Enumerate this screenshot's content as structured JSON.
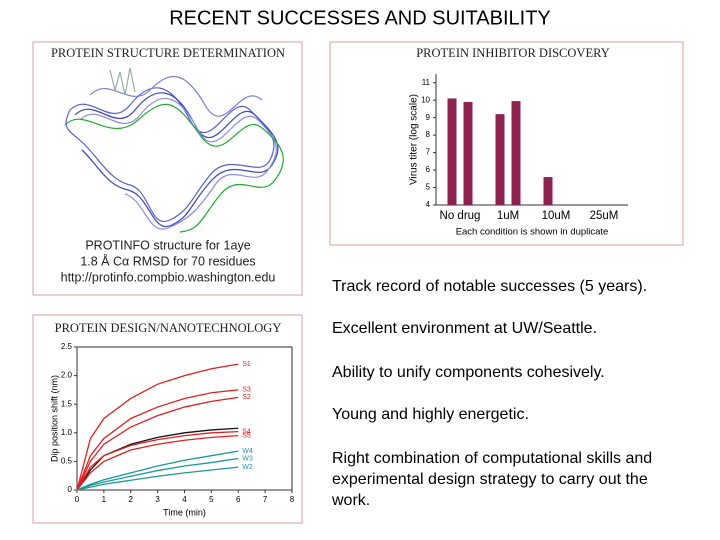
{
  "title": "RECENT SUCCESSES AND SUITABILITY",
  "panels": {
    "structure": {
      "heading": "PROTEIN STRUCTURE DETERMINATION",
      "caption": [
        "PROTINFO structure for 1aye",
        "1.8 Å Cα RMSD for 70 residues",
        "http://protinfo.compbio.washington.edu"
      ]
    },
    "inhibitor": {
      "heading": "PROTEIN INHIBITOR DISCOVERY",
      "chart_data": {
        "type": "bar",
        "ylabel": "Virus titer (log scale)",
        "caption": "Each condition is shown in duplicate",
        "categories": [
          "No drug",
          "1uM",
          "10uM",
          "25uM"
        ],
        "values": [
          [
            10.1,
            9.9
          ],
          [
            9.2,
            9.95
          ],
          [
            5.6,
            null
          ],
          [
            null,
            null
          ]
        ],
        "color": "#8e2352",
        "ylim": [
          4,
          11.5
        ],
        "yticks": [
          4,
          5,
          6,
          7,
          8,
          9,
          10,
          11
        ]
      }
    },
    "design": {
      "heading": "PROTEIN DESIGN/NANOTECHNOLOGY",
      "chart_data": {
        "type": "line",
        "xlabel": "Time (min)",
        "ylabel": "Dip position shift (nm)",
        "x": [
          0,
          0.5,
          1,
          2,
          3,
          4,
          5,
          6
        ],
        "xlim": [
          0,
          8
        ],
        "xticks": [
          0,
          1,
          2,
          3,
          4,
          5,
          6,
          7,
          8
        ],
        "ylim": [
          0,
          2.5
        ],
        "yticks": [
          0,
          0.5,
          {
            "value": 1,
            "label": "1.0"
          },
          1.5,
          {
            "value": 2,
            "label": "2.0"
          },
          2.5
        ],
        "series": [
          {
            "name": "S1",
            "color": "#e02020",
            "values": [
              0,
              0.9,
              1.25,
              1.6,
              1.85,
              2.0,
              2.12,
              2.2
            ]
          },
          {
            "name": "S3",
            "color": "#e02020",
            "values": [
              0,
              0.6,
              0.9,
              1.25,
              1.45,
              1.6,
              1.7,
              1.75
            ]
          },
          {
            "name": "S2",
            "color": "#e02020",
            "values": [
              0,
              0.5,
              0.8,
              1.1,
              1.3,
              1.45,
              1.55,
              1.62
            ]
          },
          {
            "name": null,
            "color": "#111111",
            "values": [
              0,
              0.35,
              0.6,
              0.8,
              0.92,
              1.0,
              1.05,
              1.08
            ]
          },
          {
            "name": "S4",
            "color": "#e02020",
            "values": [
              0,
              0.4,
              0.6,
              0.78,
              0.88,
              0.95,
              1.0,
              1.02
            ]
          },
          {
            "name": "S5",
            "color": "#e02020",
            "values": [
              0,
              0.3,
              0.5,
              0.7,
              0.8,
              0.87,
              0.92,
              0.95
            ]
          },
          {
            "name": "W4",
            "color": "#1a9a9a",
            "values": [
              0,
              0.1,
              0.18,
              0.3,
              0.42,
              0.52,
              0.6,
              0.68
            ]
          },
          {
            "name": "W3",
            "color": "#1a9a9a",
            "values": [
              0,
              0.08,
              0.14,
              0.24,
              0.34,
              0.42,
              0.48,
              0.55
            ]
          },
          {
            "name": "W2",
            "color": "#1a9a9a",
            "values": [
              0,
              0.05,
              0.1,
              0.17,
              0.24,
              0.3,
              0.35,
              0.4
            ]
          }
        ]
      }
    }
  },
  "bullets": [
    "Track record of notable successes (5 years).",
    "Excellent environment at UW/Seattle.",
    "Ability to unify components cohesively.",
    "Young and highly energetic.",
    "Right combination of computational skills and experimental design strategy to carry out the work."
  ]
}
